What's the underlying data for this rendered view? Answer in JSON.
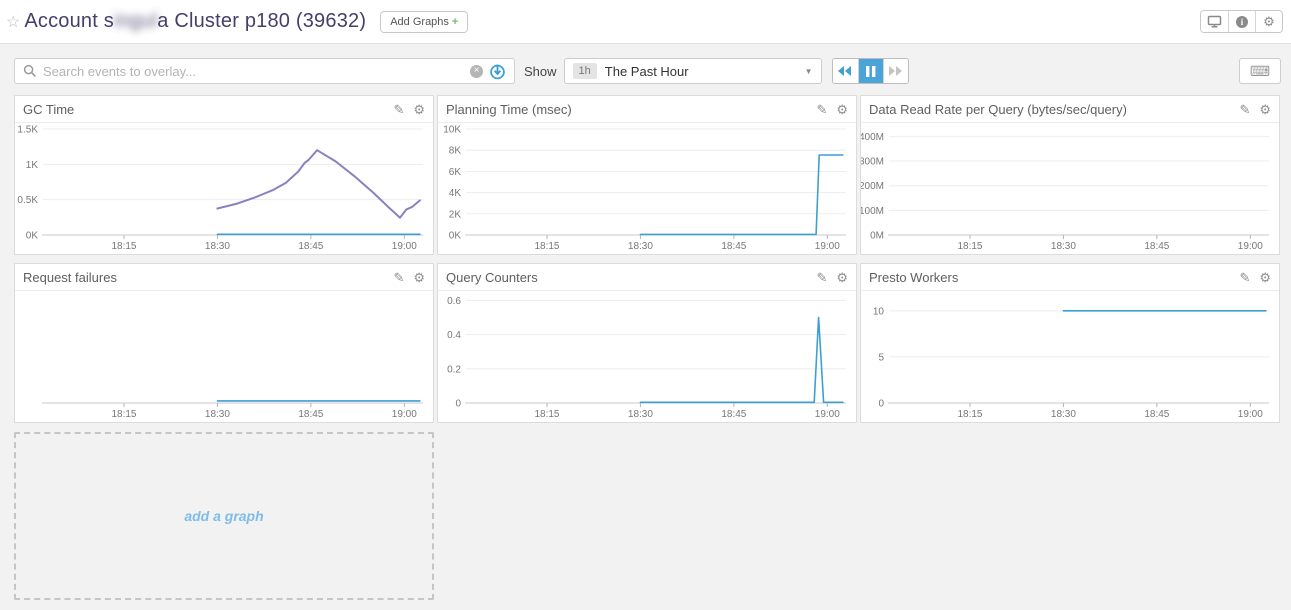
{
  "header": {
    "title": {
      "prefix": "Account s",
      "redacted": "ingul",
      "suffix": "a Cluster p180 (39632)"
    },
    "add_graphs_label": "Add Graphs",
    "add_graphs_plus": "+"
  },
  "toolbar": {
    "search_placeholder": "Search events to overlay...",
    "show_label": "Show",
    "timeframe": {
      "badge": "1h",
      "value": "The Past Hour"
    }
  },
  "add_graph": {
    "label": "add a graph"
  },
  "icons": {
    "star": "☆",
    "pencil": "✎",
    "gear": "⚙",
    "keyboard": "⌨",
    "caret_down": "▼",
    "clear": "×",
    "info": "i"
  },
  "colors": {
    "blue": "#3f9fd0",
    "purple": "#8b80c1",
    "pause_active_bg": "#4aa4d8",
    "add_graph_text": "#7fbce8",
    "axis_line": "#c9c9c9",
    "grid_line": "#ededed",
    "tick_text": "#777777"
  },
  "x_axis": {
    "domain": [
      1082,
      1143
    ],
    "ticks": [
      {
        "label": "18:15",
        "t": 1095
      },
      {
        "label": "18:30",
        "t": 1110
      },
      {
        "label": "18:45",
        "t": 1125
      },
      {
        "label": "19:00",
        "t": 1140
      }
    ]
  },
  "panels": [
    {
      "title": "GC Time",
      "chart_data": {
        "type": "line",
        "y_max": 1500,
        "y_ticks": [
          {
            "label": "0K",
            "v": 0
          },
          {
            "label": "0.5K",
            "v": 500
          },
          {
            "label": "1K",
            "v": 1000
          },
          {
            "label": "1.5K",
            "v": 1500
          }
        ],
        "series": [
          {
            "name": "gc-time",
            "color": "purple",
            "points": [
              [
                1110,
                375
              ],
              [
                1113,
                440
              ],
              [
                1116,
                530
              ],
              [
                1119,
                640
              ],
              [
                1121,
                740
              ],
              [
                1123,
                900
              ],
              [
                1124,
                1020
              ],
              [
                1124.6,
                1060
              ],
              [
                1126,
                1200
              ],
              [
                1129,
                1040
              ],
              [
                1132,
                830
              ],
              [
                1135,
                600
              ],
              [
                1137.5,
                390
              ],
              [
                1139.3,
                245
              ],
              [
                1140.3,
                360
              ],
              [
                1141.2,
                395
              ],
              [
                1142.5,
                490
              ]
            ]
          },
          {
            "name": "gc-baseline",
            "color": "blue",
            "points": [
              [
                1110,
                10
              ],
              [
                1142.5,
                10
              ]
            ]
          }
        ]
      }
    },
    {
      "title": "Planning Time (msec)",
      "chart_data": {
        "type": "line",
        "y_max": 10000,
        "y_ticks": [
          {
            "label": "0K",
            "v": 0
          },
          {
            "label": "2K",
            "v": 2000
          },
          {
            "label": "4K",
            "v": 4000
          },
          {
            "label": "6K",
            "v": 6000
          },
          {
            "label": "8K",
            "v": 8000
          },
          {
            "label": "10K",
            "v": 10000
          }
        ],
        "series": [
          {
            "name": "planning-time",
            "color": "blue",
            "points": [
              [
                1110,
                60
              ],
              [
                1138.2,
                60
              ],
              [
                1138.7,
                7550
              ],
              [
                1142.5,
                7550
              ]
            ]
          }
        ]
      }
    },
    {
      "title": "Data Read Rate per Query (bytes/sec/query)",
      "chart_data": {
        "type": "line",
        "y_max": 430,
        "y_ticks": [
          {
            "label": "0M",
            "v": 0
          },
          {
            "label": "100M",
            "v": 100
          },
          {
            "label": "200M",
            "v": 200
          },
          {
            "label": "300M",
            "v": 300
          },
          {
            "label": "400M",
            "v": 400
          }
        ],
        "series": []
      }
    },
    {
      "title": "Request failures",
      "chart_data": {
        "type": "line",
        "y_max": 1,
        "y_ticks": [],
        "series": [
          {
            "name": "request-failures",
            "color": "blue",
            "points": [
              [
                1110,
                0.02
              ],
              [
                1142.5,
                0.02
              ]
            ]
          }
        ]
      }
    },
    {
      "title": "Query Counters",
      "chart_data": {
        "type": "line",
        "y_max": 0.62,
        "y_ticks": [
          {
            "label": "0",
            "v": 0
          },
          {
            "label": "0.2",
            "v": 0.2
          },
          {
            "label": "0.4",
            "v": 0.4
          },
          {
            "label": "0.6",
            "v": 0.6
          }
        ],
        "series": [
          {
            "name": "query-counters",
            "color": "blue",
            "points": [
              [
                1110,
                0.004
              ],
              [
                1137.9,
                0.004
              ],
              [
                1138.6,
                0.5
              ],
              [
                1139.4,
                0.004
              ],
              [
                1142.5,
                0.004
              ]
            ]
          }
        ]
      }
    },
    {
      "title": "Presto Workers",
      "chart_data": {
        "type": "line",
        "y_max": 11.5,
        "y_ticks": [
          {
            "label": "0",
            "v": 0
          },
          {
            "label": "5",
            "v": 5
          },
          {
            "label": "10",
            "v": 10
          }
        ],
        "series": [
          {
            "name": "presto-workers",
            "color": "blue",
            "points": [
              [
                1110,
                10
              ],
              [
                1142.5,
                10
              ]
            ]
          }
        ]
      }
    }
  ]
}
